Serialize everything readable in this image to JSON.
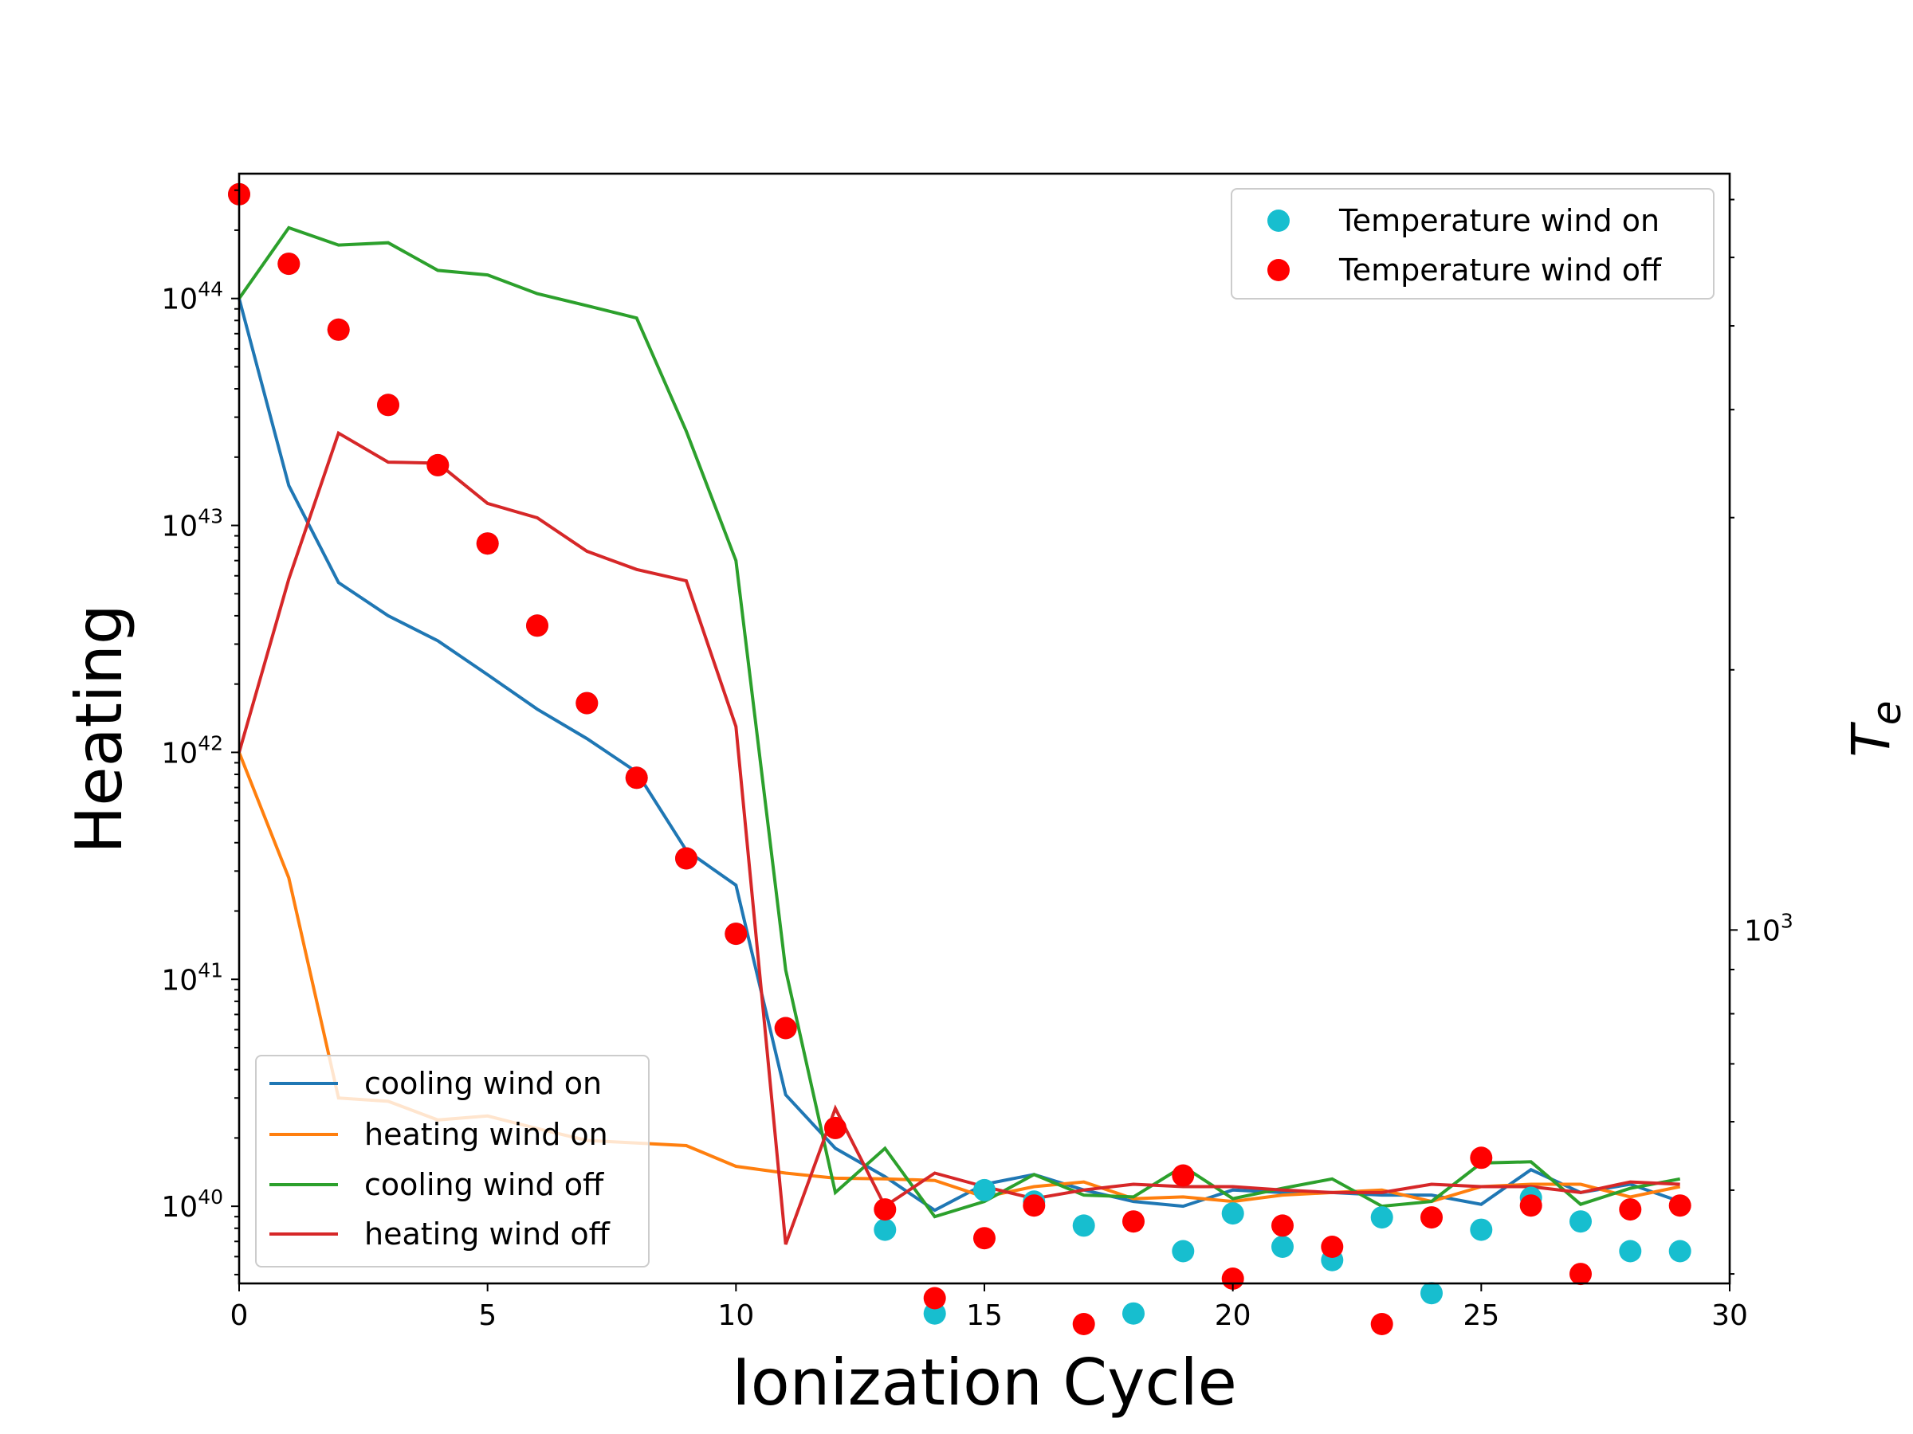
{
  "chart_data": {
    "type": "line",
    "xlabel": "Ionization Cycle",
    "ylabel": "Heating",
    "y2label": "T_e",
    "x_ticks": [
      0,
      5,
      10,
      15,
      20,
      25,
      30
    ],
    "xlim": [
      0,
      30
    ],
    "ylim_log10": [
      39.66,
      44.55
    ],
    "y_ticks": [
      {
        "base": "10",
        "exp": "40",
        "value": 1e+40
      },
      {
        "base": "10",
        "exp": "41",
        "value": 1e+41
      },
      {
        "base": "10",
        "exp": "42",
        "value": 1e+42
      },
      {
        "base": "10",
        "exp": "43",
        "value": 1e+43
      },
      {
        "base": "10",
        "exp": "44",
        "value": 1e+44
      }
    ],
    "y2_scale": "log",
    "y2lim": [
      390,
      7500
    ],
    "y2_ticks": [
      {
        "base": "10",
        "exp": "3",
        "value": 1000
      }
    ],
    "grid": false,
    "x": [
      0,
      1,
      2,
      3,
      4,
      5,
      6,
      7,
      8,
      9,
      10,
      11,
      12,
      13,
      14,
      15,
      16,
      17,
      18,
      19,
      20,
      21,
      22,
      23,
      24,
      25,
      26,
      27,
      28,
      29
    ],
    "series": [
      {
        "name": "cooling wind on",
        "color": "#1f77b4",
        "kind": "line",
        "axis": "left",
        "values": [
          1e+44,
          1.5e+43,
          5.6e+42,
          4e+42,
          3.1e+42,
          2.2e+42,
          1.55e+42,
          1.15e+42,
          8.2e+41,
          3.7e+41,
          2.6e+41,
          3.1e+40,
          1.8e+40,
          1.35e+40,
          9.6e+39,
          1.25e+40,
          1.38e+40,
          1.18e+40,
          1.05e+40,
          1e+40,
          1.18e+40,
          1.15e+40,
          1.15e+40,
          1.12e+40,
          1.12e+40,
          1.02e+40,
          1.45e+40,
          1.15e+40,
          1.25e+40,
          1.05e+40
        ]
      },
      {
        "name": "heating wind on",
        "color": "#ff7f0e",
        "kind": "line",
        "axis": "left",
        "values": [
          1e+42,
          2.8e+41,
          3e+40,
          2.9e+40,
          2.4e+40,
          2.5e+40,
          2.2e+40,
          1.95e+40,
          1.9e+40,
          1.85e+40,
          1.5e+40,
          1.4e+40,
          1.33e+40,
          1.32e+40,
          1.3e+40,
          1.1e+40,
          1.22e+40,
          1.28e+40,
          1.08e+40,
          1.1e+40,
          1.05e+40,
          1.12e+40,
          1.15e+40,
          1.18e+40,
          1.05e+40,
          1.22e+40,
          1.25e+40,
          1.25e+40,
          1.1e+40,
          1.22e+40
        ]
      },
      {
        "name": "cooling wind off",
        "color": "#2ca02c",
        "kind": "line",
        "axis": "left",
        "values": [
          1e+44,
          2.05e+44,
          1.72e+44,
          1.76e+44,
          1.33e+44,
          1.27e+44,
          1.05e+44,
          9.3e+43,
          8.2e+43,
          2.6e+43,
          7e+42,
          1.1e+41,
          1.15e+40,
          1.8e+40,
          9e+39,
          1.05e+40,
          1.38e+40,
          1.12e+40,
          1.1e+40,
          1.5e+40,
          1.08e+40,
          1.2e+40,
          1.32e+40,
          1e+40,
          1.05e+40,
          1.55e+40,
          1.57e+40,
          1.02e+40,
          1.2e+40,
          1.32e+40
        ]
      },
      {
        "name": "heating wind off",
        "color": "#d62728",
        "kind": "line",
        "axis": "left",
        "values": [
          1e+42,
          5.8e+42,
          2.55e+43,
          1.9e+43,
          1.88e+43,
          1.25e+43,
          1.08e+43,
          7.7e+42,
          6.4e+42,
          5.7e+42,
          1.3e+42,
          6.8e+39,
          2.7e+40,
          1e+40,
          1.4e+40,
          1.22e+40,
          1.08e+40,
          1.18e+40,
          1.25e+40,
          1.22e+40,
          1.22e+40,
          1.18e+40,
          1.15e+40,
          1.15e+40,
          1.25e+40,
          1.22e+40,
          1.22e+40,
          1.15e+40,
          1.28e+40,
          1.25e+40
        ]
      },
      {
        "name": "Temperature wind on",
        "color": "#17becf",
        "kind": "scatter",
        "axis": "right",
        "values": [
          7100,
          5900,
          4950,
          4050,
          3450,
          2800,
          2250,
          1830,
          1500,
          1210,
          990,
          770,
          590,
          450,
          360,
          500,
          485,
          455,
          360,
          425,
          470,
          430,
          415,
          465,
          380,
          450,
          490,
          460,
          425,
          425
        ]
      },
      {
        "name": "Temperature wind off",
        "color": "#ff0000",
        "kind": "scatter",
        "axis": "right",
        "values": [
          7100,
          5900,
          4950,
          4050,
          3450,
          2800,
          2250,
          1830,
          1500,
          1210,
          990,
          770,
          590,
          475,
          375,
          440,
          480,
          350,
          460,
          520,
          395,
          455,
          430,
          350,
          465,
          545,
          480,
          400,
          475,
          480
        ]
      }
    ]
  }
}
